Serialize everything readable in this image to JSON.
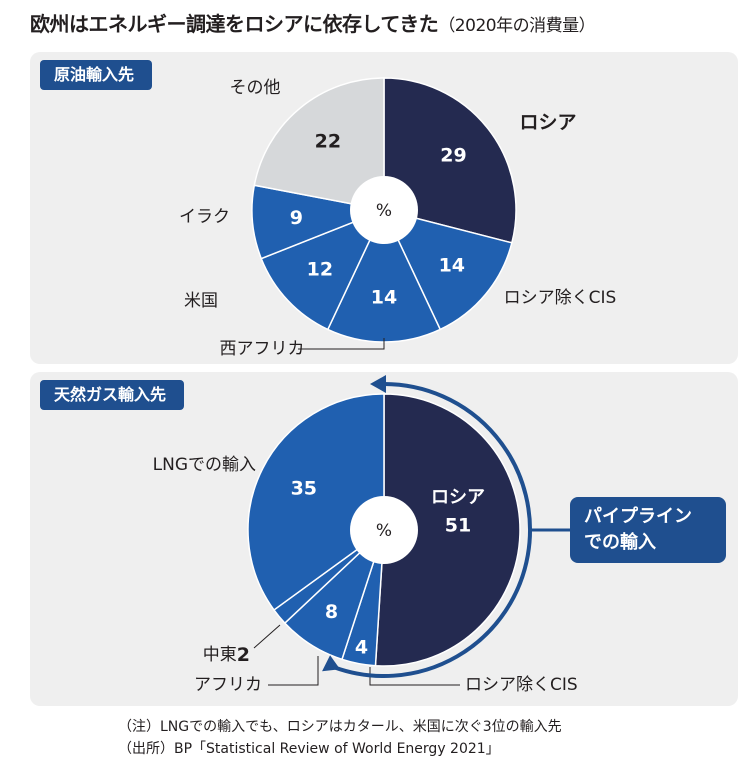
{
  "title": "欧州はエネルギー調達をロシアに依存してきた",
  "subtitle": "（2020年の消費量）",
  "colors": {
    "navy": "#242a50",
    "blue": "#2060b0",
    "gray": "#d6d8da",
    "tag": "#1f4f8f",
    "panel": "#efefef"
  },
  "chart_data": [
    {
      "type": "pie",
      "title": "原油輸入先",
      "center_label": "%",
      "slices": [
        {
          "label": "ロシア",
          "value": 29,
          "color": "#242a50"
        },
        {
          "label": "ロシア除くCIS",
          "value": 14,
          "color": "#2060b0"
        },
        {
          "label": "西アフリカ",
          "value": 14,
          "color": "#2060b0"
        },
        {
          "label": "米国",
          "value": 12,
          "color": "#2060b0"
        },
        {
          "label": "イラク",
          "value": 9,
          "color": "#2060b0"
        },
        {
          "label": "その他",
          "value": 22,
          "color": "#d6d8da"
        }
      ]
    },
    {
      "type": "pie",
      "title": "天然ガス輸入先",
      "center_label": "%",
      "slices": [
        {
          "label": "ロシア",
          "value": 51,
          "color": "#242a50"
        },
        {
          "label": "ロシア除くCIS",
          "value": 4,
          "color": "#2060b0"
        },
        {
          "label": "アフリカ",
          "value": 8,
          "color": "#2060b0"
        },
        {
          "label": "中東",
          "value": 2,
          "color": "#2060b0"
        },
        {
          "label": "LNGでの輸入",
          "value": 35,
          "color": "#2060b0"
        }
      ],
      "annotation": "パイプラインでの輸入",
      "annotation_lines": [
        "パイプライン",
        "での輸入"
      ]
    }
  ],
  "footnotes": [
    "（注）LNGでの輸入でも、ロシアはカタール、米国に次ぐ3位の輸入先",
    "（出所）BP「Statistical Review of World Energy 2021」"
  ]
}
